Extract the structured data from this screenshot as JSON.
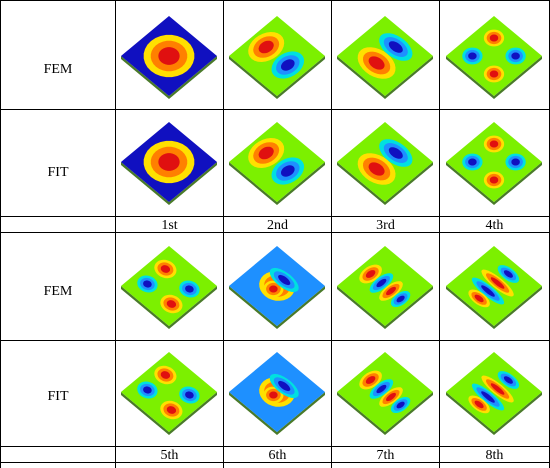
{
  "row_labels": {
    "fem": "FEM",
    "fit": "FIT"
  },
  "modes": [
    {
      "label": "1st",
      "pattern": "m1"
    },
    {
      "label": "2nd",
      "pattern": "m2"
    },
    {
      "label": "3rd",
      "pattern": "m3"
    },
    {
      "label": "4th",
      "pattern": "m4"
    },
    {
      "label": "5th",
      "pattern": "m5"
    },
    {
      "label": "6th",
      "pattern": "m6"
    },
    {
      "label": "7th",
      "pattern": "m7"
    },
    {
      "label": "8th",
      "pattern": "m8"
    }
  ],
  "colormap": [
    "#1010c0",
    "#1e90ff",
    "#00e0e0",
    "#7cf000",
    "#ffe000",
    "#ff8000",
    "#e01010"
  ]
}
